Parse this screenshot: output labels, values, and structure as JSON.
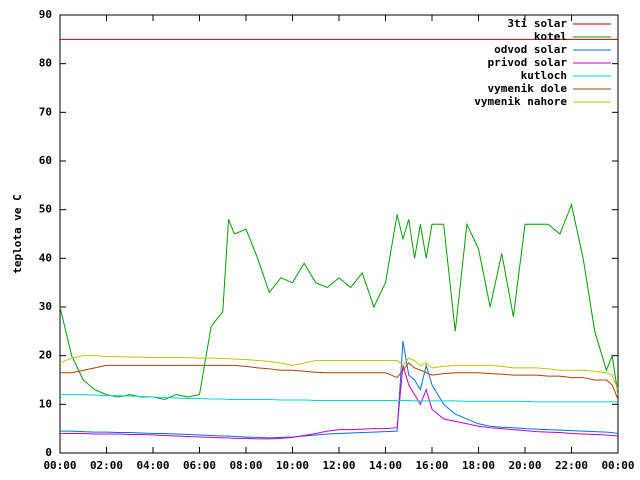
{
  "chart_data": {
    "type": "line",
    "y_label": "teplota ve C",
    "x": [
      0,
      0.5,
      1,
      1.5,
      2,
      2.5,
      3,
      3.5,
      4,
      4.5,
      5,
      5.5,
      6,
      6.5,
      7,
      7.25,
      7.5,
      8,
      8.5,
      9,
      9.5,
      10,
      10.5,
      11,
      11.5,
      12,
      12.5,
      13,
      13.5,
      14,
      14.5,
      14.75,
      15,
      15.25,
      15.5,
      15.75,
      16,
      16.5,
      17,
      17.5,
      18,
      18.5,
      19,
      19.5,
      20,
      20.5,
      21,
      21.5,
      22,
      22.5,
      23,
      23.5,
      23.75,
      24
    ],
    "xlim": [
      0,
      24
    ],
    "xticks": [
      {
        "value": 0,
        "label": "00:00"
      },
      {
        "value": 2,
        "label": "02:00"
      },
      {
        "value": 4,
        "label": "04:00"
      },
      {
        "value": 6,
        "label": "06:00"
      },
      {
        "value": 8,
        "label": "08:00"
      },
      {
        "value": 10,
        "label": "10:00"
      },
      {
        "value": 12,
        "label": "12:00"
      },
      {
        "value": 14,
        "label": "14:00"
      },
      {
        "value": 16,
        "label": "16:00"
      },
      {
        "value": 18,
        "label": "18:00"
      },
      {
        "value": 20,
        "label": "20:00"
      },
      {
        "value": 22,
        "label": "22:00"
      },
      {
        "value": 24,
        "label": "00:00"
      }
    ],
    "ylim": [
      0,
      90
    ],
    "yticks": [
      0,
      10,
      20,
      30,
      40,
      50,
      60,
      70,
      80,
      90
    ],
    "grid": false,
    "legend": "top-right",
    "series": [
      {
        "name": "3ti solar",
        "color": "#c00000",
        "values": [
          85,
          85,
          85,
          85,
          85,
          85,
          85,
          85,
          85,
          85,
          85,
          85,
          85,
          85,
          85,
          85,
          85,
          85,
          85,
          85,
          85,
          85,
          85,
          85,
          85,
          85,
          85,
          85,
          85,
          85,
          85,
          85,
          85,
          85,
          85,
          85,
          85,
          85,
          85,
          85,
          85,
          85,
          85,
          85,
          85,
          85,
          85,
          85,
          85,
          85,
          85,
          85,
          85,
          85
        ]
      },
      {
        "name": "kotel",
        "color": "#00a000",
        "values": [
          30,
          20,
          15,
          13,
          12,
          11.5,
          12,
          11.5,
          11.5,
          11,
          12,
          11.5,
          12,
          26,
          29,
          48,
          45,
          46,
          40,
          33,
          36,
          35,
          39,
          35,
          34,
          36,
          34,
          37,
          30,
          35,
          49,
          44,
          48,
          40,
          47,
          40,
          47,
          47,
          25,
          47,
          42,
          30,
          41,
          28,
          47,
          47,
          47,
          45,
          51,
          40,
          25,
          17,
          20,
          12
        ]
      },
      {
        "name": "odvod solar",
        "color": "#0070e0",
        "values": [
          4.5,
          4.5,
          4.4,
          4.3,
          4.3,
          4.2,
          4.2,
          4.1,
          4,
          4,
          3.9,
          3.8,
          3.7,
          3.6,
          3.5,
          3.5,
          3.4,
          3.3,
          3.2,
          3.1,
          3.2,
          3.3,
          3.5,
          3.7,
          3.9,
          4,
          4.1,
          4.2,
          4.3,
          4.4,
          4.5,
          23,
          16,
          15,
          13,
          18,
          14,
          10,
          8,
          7,
          6,
          5.5,
          5.3,
          5.2,
          5,
          4.9,
          4.8,
          4.7,
          4.6,
          4.5,
          4.4,
          4.3,
          4.2,
          4
        ]
      },
      {
        "name": "privod solar",
        "color": "#c000d0",
        "values": [
          4,
          4,
          4,
          3.9,
          3.9,
          3.9,
          3.8,
          3.8,
          3.7,
          3.6,
          3.5,
          3.4,
          3.3,
          3.2,
          3.1,
          3.1,
          3,
          3,
          2.9,
          2.9,
          3,
          3.2,
          3.6,
          4,
          4.5,
          4.8,
          4.8,
          4.9,
          5,
          5,
          5.2,
          18,
          14,
          12,
          10,
          13,
          9,
          7,
          6.5,
          6,
          5.5,
          5.2,
          5,
          4.8,
          4.6,
          4.4,
          4.3,
          4.2,
          4,
          3.9,
          3.8,
          3.7,
          3.6,
          3.5
        ]
      },
      {
        "name": "kutloch",
        "color": "#00d8d8",
        "values": [
          12,
          12,
          12,
          11.9,
          11.8,
          11.8,
          11.7,
          11.6,
          11.5,
          11.4,
          11.3,
          11.2,
          11.2,
          11.1,
          11.1,
          11,
          11,
          11,
          11,
          11,
          10.9,
          10.9,
          10.9,
          10.8,
          10.8,
          10.8,
          10.8,
          10.8,
          10.8,
          10.8,
          10.8,
          10.8,
          10.8,
          10.7,
          10.7,
          10.7,
          10.7,
          10.7,
          10.7,
          10.6,
          10.6,
          10.6,
          10.6,
          10.6,
          10.6,
          10.5,
          10.5,
          10.5,
          10.5,
          10.5,
          10.5,
          10.5,
          10.5,
          10.5
        ]
      },
      {
        "name": "vymenik dole",
        "color": "#b04000",
        "values": [
          16.5,
          16.5,
          17,
          17.5,
          18,
          18,
          18,
          18,
          18,
          18,
          18,
          18,
          18,
          18,
          18,
          18,
          18,
          17.8,
          17.5,
          17.3,
          17,
          17,
          16.8,
          16.6,
          16.5,
          16.5,
          16.5,
          16.5,
          16.5,
          16.5,
          15.5,
          17,
          18.5,
          17.5,
          17,
          16.5,
          16,
          16.3,
          16.5,
          16.5,
          16.5,
          16.3,
          16.2,
          16,
          16,
          16,
          15.8,
          15.8,
          15.5,
          15.5,
          15,
          15,
          14,
          11
        ]
      },
      {
        "name": "vymenik nahore",
        "color": "#c8c000",
        "values": [
          18.5,
          19.5,
          20,
          20,
          19.8,
          19.8,
          19.7,
          19.7,
          19.6,
          19.6,
          19.6,
          19.6,
          19.5,
          19.5,
          19.4,
          19.4,
          19.3,
          19.2,
          19,
          18.8,
          18.5,
          18,
          18.5,
          19,
          19,
          19,
          19,
          19,
          19,
          19,
          19,
          18,
          19.5,
          19,
          18,
          18.5,
          17.5,
          17.8,
          18,
          18,
          18,
          18,
          17.8,
          17.5,
          17.5,
          17.5,
          17.3,
          17,
          17,
          17,
          16.8,
          16.5,
          16,
          13
        ]
      }
    ]
  }
}
